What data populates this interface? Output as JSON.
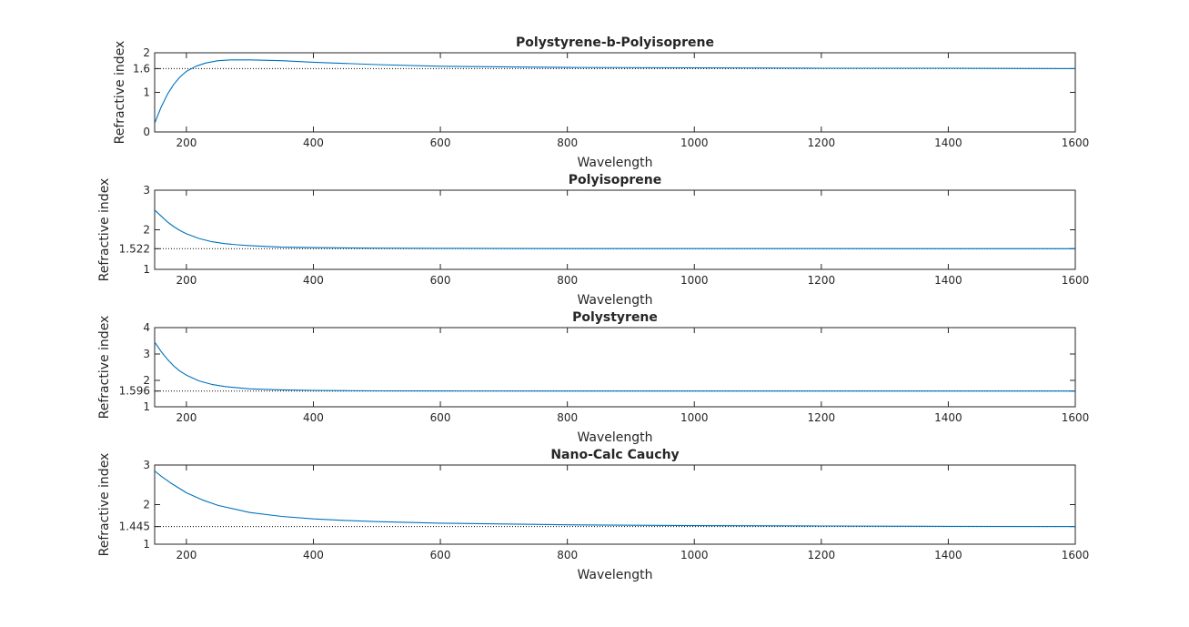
{
  "figure": {
    "line_color": "#0072bd",
    "ref_line_color": "#000000",
    "axes_color": "#262626"
  },
  "chart_data": [
    {
      "type": "line",
      "title": "Polystyrene-b-Polyisoprene",
      "xlabel": "Wavelength",
      "ylabel": "Refractive index",
      "xlim": [
        150,
        1600
      ],
      "ylim": [
        0,
        2
      ],
      "xticks": [
        200,
        400,
        600,
        800,
        1000,
        1200,
        1400,
        1600
      ],
      "yticks": [
        0,
        1,
        1.6,
        2
      ],
      "ytick_labels": [
        "0",
        "1",
        "1.6",
        "2"
      ],
      "reference_line": {
        "y": 1.6,
        "style": "dotted"
      },
      "series": [
        {
          "x": [
            150,
            160,
            170,
            180,
            190,
            200,
            215,
            230,
            250,
            270,
            300,
            350,
            400,
            500,
            600,
            800,
            1000,
            1200,
            1400,
            1600
          ],
          "values": [
            0.22,
            0.62,
            0.95,
            1.2,
            1.39,
            1.53,
            1.66,
            1.74,
            1.8,
            1.82,
            1.82,
            1.8,
            1.76,
            1.7,
            1.66,
            1.63,
            1.62,
            1.61,
            1.61,
            1.6
          ]
        }
      ]
    },
    {
      "type": "line",
      "title": "Polyisoprene",
      "xlabel": "Wavelength",
      "ylabel": "Refractive index",
      "xlim": [
        150,
        1600
      ],
      "ylim": [
        1,
        3
      ],
      "xticks": [
        200,
        400,
        600,
        800,
        1000,
        1200,
        1400,
        1600
      ],
      "yticks": [
        1,
        1.522,
        2,
        3
      ],
      "ytick_labels": [
        "1",
        "1.522",
        "2",
        "3"
      ],
      "reference_line": {
        "y": 1.522,
        "style": "dotted"
      },
      "series": [
        {
          "x": [
            150,
            160,
            170,
            180,
            190,
            200,
            220,
            240,
            260,
            280,
            300,
            350,
            400,
            500,
            600,
            800,
            1000,
            1200,
            1400,
            1600
          ],
          "values": [
            2.5,
            2.35,
            2.2,
            2.08,
            1.98,
            1.9,
            1.78,
            1.7,
            1.65,
            1.62,
            1.6,
            1.56,
            1.55,
            1.535,
            1.53,
            1.525,
            1.524,
            1.523,
            1.522,
            1.522
          ]
        }
      ]
    },
    {
      "type": "line",
      "title": "Polystyrene",
      "xlabel": "Wavelength",
      "ylabel": "Refractive index",
      "xlim": [
        150,
        1600
      ],
      "ylim": [
        1,
        4
      ],
      "xticks": [
        200,
        400,
        600,
        800,
        1000,
        1200,
        1400,
        1600
      ],
      "yticks": [
        1,
        1.596,
        2,
        3,
        4
      ],
      "ytick_labels": [
        "1",
        "1.596",
        "2",
        "3",
        "4"
      ],
      "reference_line": {
        "y": 1.596,
        "style": "dotted"
      },
      "series": [
        {
          "x": [
            150,
            160,
            170,
            180,
            190,
            200,
            220,
            240,
            260,
            280,
            300,
            350,
            400,
            500,
            600,
            800,
            1000,
            1200,
            1400,
            1600
          ],
          "values": [
            3.45,
            3.1,
            2.8,
            2.55,
            2.35,
            2.2,
            1.98,
            1.85,
            1.77,
            1.72,
            1.68,
            1.64,
            1.62,
            1.605,
            1.6,
            1.598,
            1.597,
            1.596,
            1.596,
            1.596
          ]
        }
      ]
    },
    {
      "type": "line",
      "title": "Nano-Calc Cauchy",
      "xlabel": "Wavelength",
      "ylabel": "Refractive index",
      "xlim": [
        150,
        1600
      ],
      "ylim": [
        1,
        3
      ],
      "xticks": [
        200,
        400,
        600,
        800,
        1000,
        1200,
        1400,
        1600
      ],
      "yticks": [
        1,
        1.445,
        2,
        3
      ],
      "ytick_labels": [
        "1",
        "1.445",
        "2",
        "3"
      ],
      "reference_line": {
        "y": 1.445,
        "style": "dotted"
      },
      "series": [
        {
          "x": [
            150,
            160,
            175,
            200,
            225,
            250,
            300,
            350,
            400,
            450,
            500,
            600,
            700,
            800,
            1000,
            1200,
            1400,
            1600
          ],
          "values": [
            2.85,
            2.72,
            2.55,
            2.3,
            2.12,
            1.98,
            1.8,
            1.7,
            1.64,
            1.6,
            1.57,
            1.53,
            1.51,
            1.49,
            1.47,
            1.46,
            1.45,
            1.445
          ]
        }
      ]
    }
  ]
}
